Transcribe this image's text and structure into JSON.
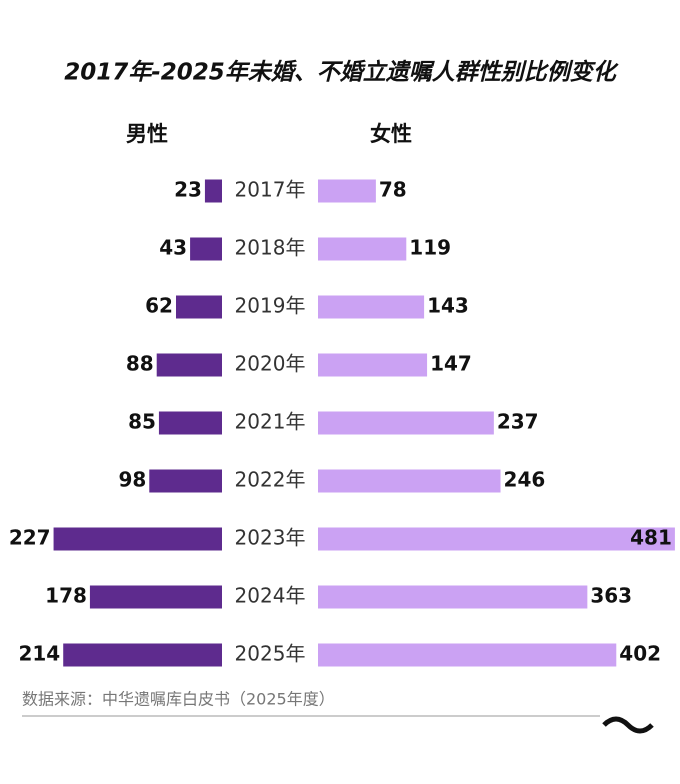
{
  "chart_data": {
    "type": "butterfly",
    "title": "2017年-2025年未婚、不婚立遗嘱人群性别比例变化",
    "categories": [
      "2017年",
      "2018年",
      "2019年",
      "2020年",
      "2021年",
      "2022年",
      "2023年",
      "2024年",
      "2025年"
    ],
    "series": [
      {
        "name": "男性",
        "color": "#5e2b8e",
        "values": [
          23,
          43,
          62,
          88,
          85,
          98,
          227,
          178,
          214
        ]
      },
      {
        "name": "女性",
        "color": "#cba2f3",
        "values": [
          78,
          119,
          143,
          147,
          237,
          246,
          481,
          363,
          402
        ]
      }
    ],
    "source": "数据来源：中华遗嘱库白皮书（2025年度）"
  }
}
